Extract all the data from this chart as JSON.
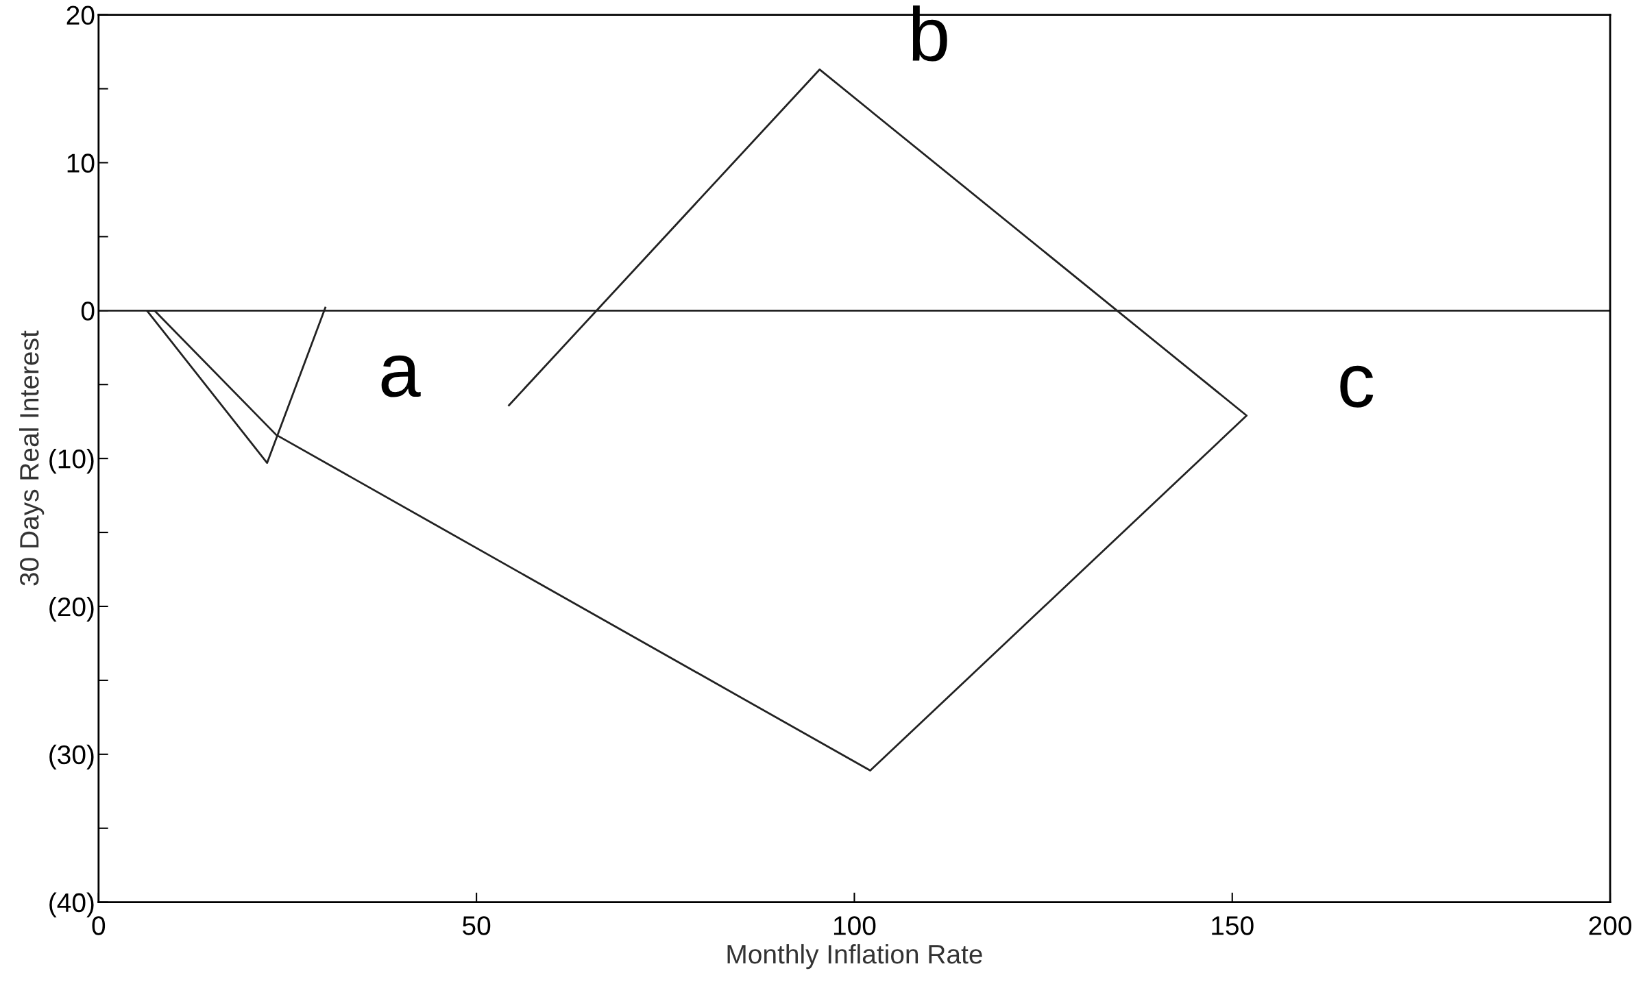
{
  "chart_data": {
    "type": "line",
    "xlabel": "Monthly Inflation Rate",
    "ylabel": "30 Days Real Interest",
    "x": [
      30,
      22.3,
      6.4,
      7.4,
      23.5,
      102.1,
      151.9,
      95.4,
      54.3
    ],
    "series": [
      {
        "color": "#222222",
        "values": [
          0.2,
          -10.3,
          0,
          0,
          -8.4,
          -31.1,
          -7.1,
          16.3,
          -6.4
        ]
      }
    ],
    "xlim": [
      0,
      200
    ],
    "xticks": [
      0,
      50,
      100,
      150,
      200
    ],
    "ylim": [
      -40,
      20
    ],
    "yticks": [
      {
        "value": -40,
        "label": "(40)"
      },
      {
        "value": -35,
        "label": null
      },
      {
        "value": -30,
        "label": "(30)"
      },
      {
        "value": -25,
        "label": null
      },
      {
        "value": -20,
        "label": "(20)"
      },
      {
        "value": -15,
        "label": null
      },
      {
        "value": -10,
        "label": "(10)"
      },
      {
        "value": -5,
        "label": null
      },
      0,
      {
        "value": 5,
        "label": null
      },
      10,
      {
        "value": 15,
        "label": null
      },
      20
    ],
    "ref_lines": [
      {
        "axis": "y",
        "value": 0,
        "color": "#222222"
      }
    ],
    "annotations": [
      {
        "text": "a",
        "x": 54.3,
        "y": -6.4
      },
      {
        "text": "b",
        "x": 95.4,
        "y": 16.3
      },
      {
        "text": "c",
        "x": 151.9,
        "y": -7.1
      }
    ],
    "grid": false,
    "legend": false,
    "marker": "none",
    "line_style": "solid"
  }
}
